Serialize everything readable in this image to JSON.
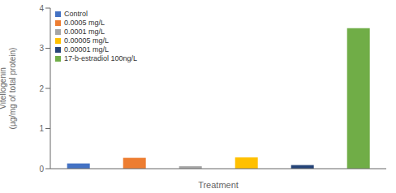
{
  "chart_data": {
    "type": "bar",
    "categories": [
      "Control",
      "0.0005 mg/L",
      "0.0001 mg/L",
      "0.00005 mg/L",
      "0.00001 mg/L",
      "17-b-estradiol 100ng/L"
    ],
    "values": [
      0.13,
      0.27,
      0.06,
      0.28,
      0.09,
      3.5
    ],
    "colors": [
      "#4472c4",
      "#ed7d31",
      "#a5a5a5",
      "#ffc000",
      "#264478",
      "#70ad47"
    ],
    "xlabel": "Treatment",
    "ylabel": "Vitellogenin\n(µg/mg of total protein)",
    "ylim": [
      0,
      4
    ],
    "yticks": [
      0,
      1,
      2,
      3,
      4
    ],
    "legend": "upper left",
    "tick_labels": "y"
  }
}
